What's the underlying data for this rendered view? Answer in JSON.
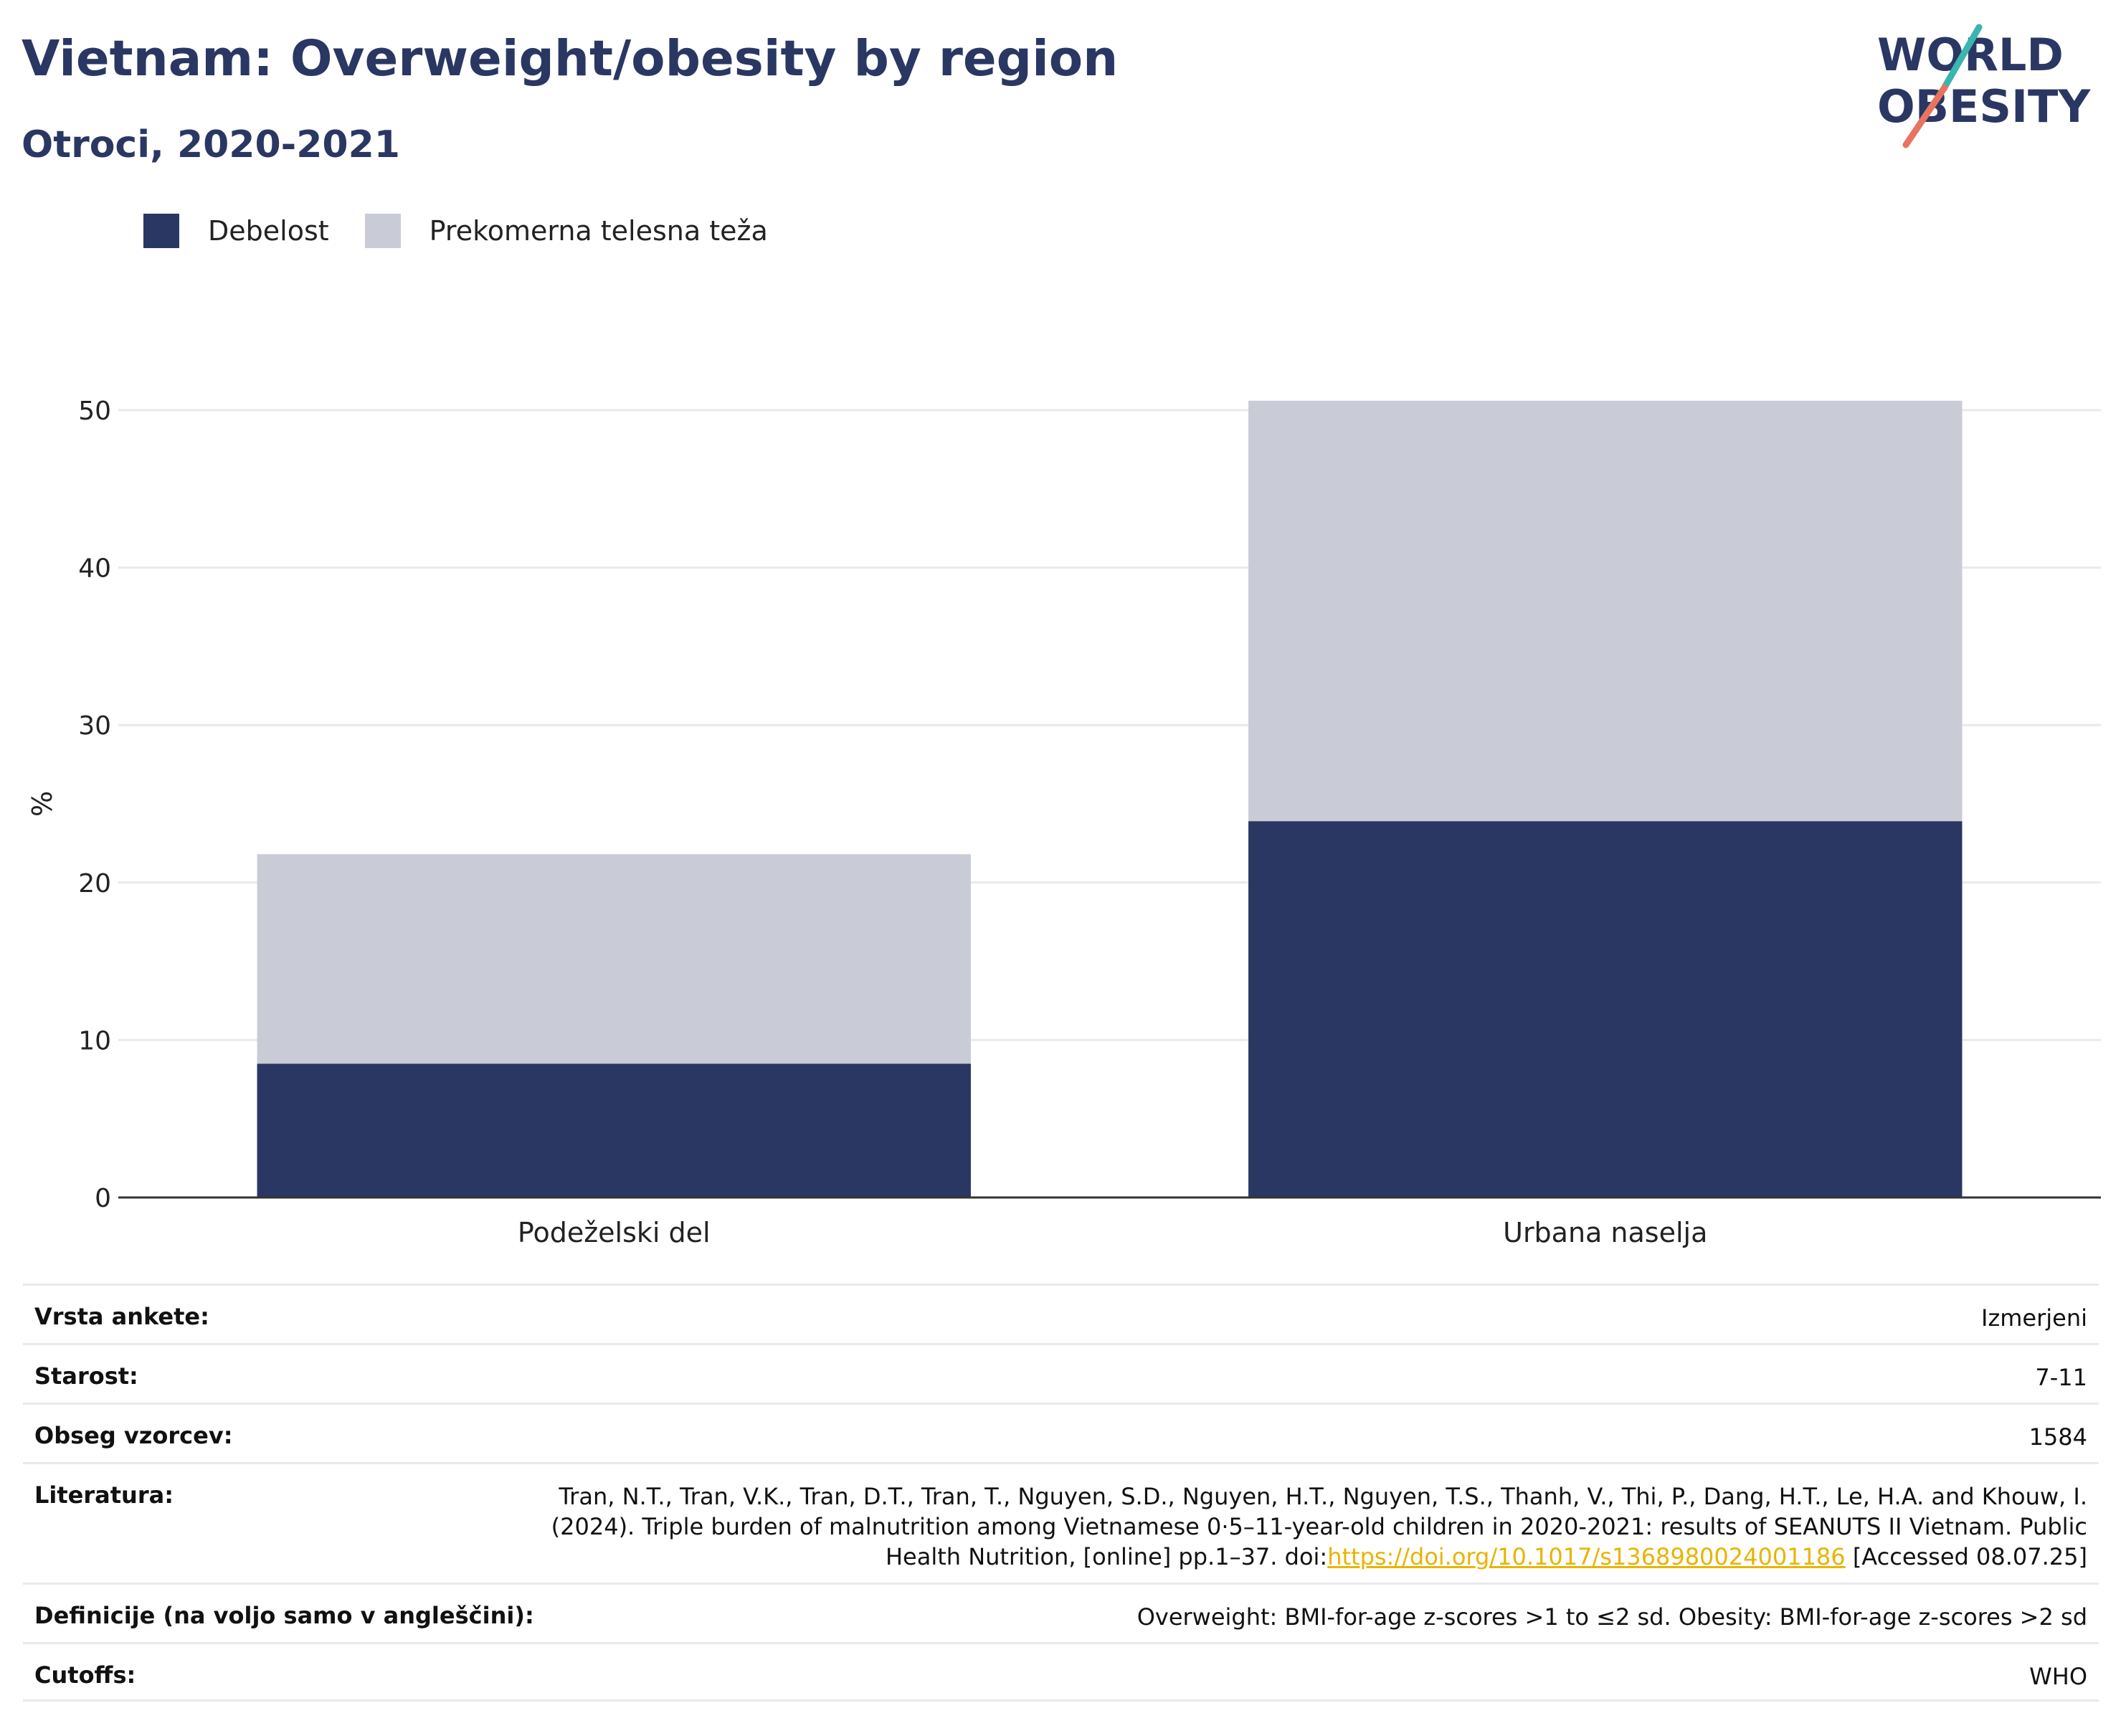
{
  "header": {
    "title": "Vietnam: Overweight/obesity by region",
    "subtitle": "Otroci, 2020-2021"
  },
  "logo": {
    "line1": "WORLD",
    "line2": "OBESITY",
    "accent_teal": "#3ab5b0",
    "accent_coral": "#e8735f"
  },
  "legend": {
    "items": [
      {
        "label": "Debelost",
        "color": "#2a3763"
      },
      {
        "label": "Prekomerna telesna teža",
        "color": "#c9cbd7"
      }
    ]
  },
  "chart_data": {
    "type": "bar",
    "stacked": true,
    "categories": [
      "Podeželski del",
      "Urbana naselja"
    ],
    "series": [
      {
        "name": "Debelost",
        "values": [
          8.5,
          23.9
        ],
        "color": "#2a3763"
      },
      {
        "name": "Prekomerna telesna teža",
        "values": [
          13.3,
          26.7
        ],
        "color": "#c9cbd7"
      }
    ],
    "ylabel": "%",
    "ylim": [
      0,
      50
    ],
    "yticks": [
      "0",
      "10",
      "20",
      "30",
      "40",
      "50"
    ],
    "grid": true,
    "legend_position": "top-left"
  },
  "info": {
    "rows": [
      {
        "label": "Vrsta ankete:",
        "value": "Izmerjeni"
      },
      {
        "label": "Starost:",
        "value": "7-11"
      },
      {
        "label": "Obseg vzorcev:",
        "value": "1584"
      },
      {
        "label": "Literatura:",
        "value": "Tran, N.T., Tran, V.K., Tran, D.T., Tran, T., Nguyen, S.D., Nguyen, H.T., Nguyen, T.S., Thanh, V., Thi, P., Dang, H.T., Le, H.A. and Khouw, I. (2024). Triple burden of malnutrition among Vietnamese 0·5–11-year-old children in 2020-2021: results of SEANUTS II Vietnam. Public Health Nutrition, [online] pp.1–37. doi:",
        "link": "https://doi.org/10.1017/s1368980024001186",
        "suffix": " [Accessed 08.07.25]"
      },
      {
        "label": "Definicije (na voljo samo v angleščini):",
        "value": "Overweight: BMI-for-age z-scores >1 to ≤2 sd. Obesity: BMI-for-age z-scores >2 sd"
      },
      {
        "label": "Cutoffs:",
        "value": "WHO"
      }
    ]
  }
}
